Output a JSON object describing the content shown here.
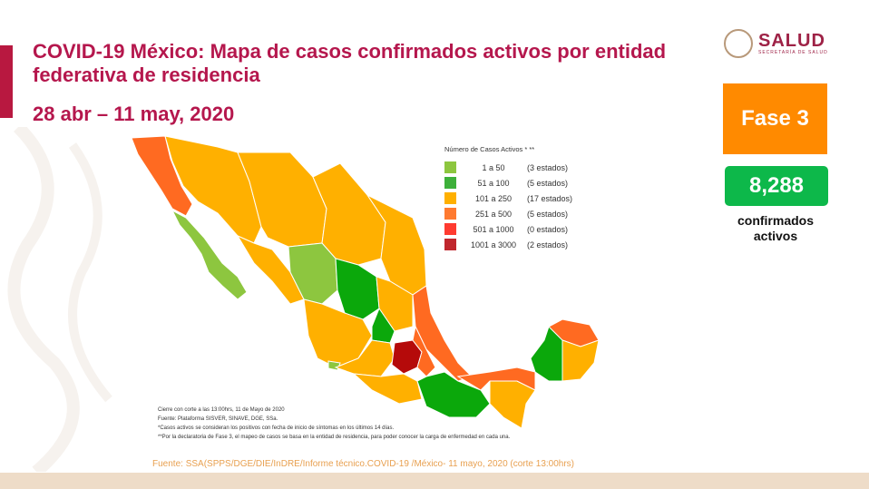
{
  "header": {
    "title": "COVID-19 México: Mapa de casos confirmados activos por entidad federativa de residencia",
    "date_range": "28 abr – 11 may, 2020"
  },
  "logo": {
    "main": "SALUD",
    "sub": "SECRETARÍA DE SALUD"
  },
  "phase": {
    "label": "Fase 3"
  },
  "active_cases": {
    "value": "8,288",
    "label": "confirmados activos"
  },
  "legend": {
    "title": "Número de Casos Activos * **",
    "items": [
      {
        "range": "1 a 50",
        "count": "(3 estados)",
        "color": "#8DC63F"
      },
      {
        "range": "51 a 100",
        "count": "(5 estados)",
        "color": "#3DB03A"
      },
      {
        "range": "101 a 250",
        "count": "(17 estados)",
        "color": "#FFB000"
      },
      {
        "range": "251 a 500",
        "count": "(5 estados)",
        "color": "#FF7A30"
      },
      {
        "range": "501 a 1000",
        "count": "(0 estados)",
        "color": "#FF3B30"
      },
      {
        "range": "1001 a 3000",
        "count": "(2 estados)",
        "color": "#C0272D"
      }
    ]
  },
  "map_colors": {
    "light_green": "#8DC63F",
    "green": "#0BA80B",
    "orange": "#FFB000",
    "red_orange": "#FF6A21",
    "dark_red": "#B50A0A"
  },
  "notes": [
    "Cierre con corte a las 13:00hrs, 11 de Mayo de 2020",
    "Fuente: Plataforma SISVER, SINAVE, DGE, SSa.",
    "*Casos activos se consideran los positivos con fecha de inicio de síntomas en los últimos 14 días.",
    "**Por la declaratoria de Fase 3, el mapeo de casos se basa en la entidad de residencia, para poder conocer la carga de enfermedad en cada una."
  ],
  "source": "Fuente: SSA(SPPS/DGE/DIE/InDRE/Informe técnico.COVID-19 /México- 11 mayo, 2020 (corte 13:00hrs)"
}
